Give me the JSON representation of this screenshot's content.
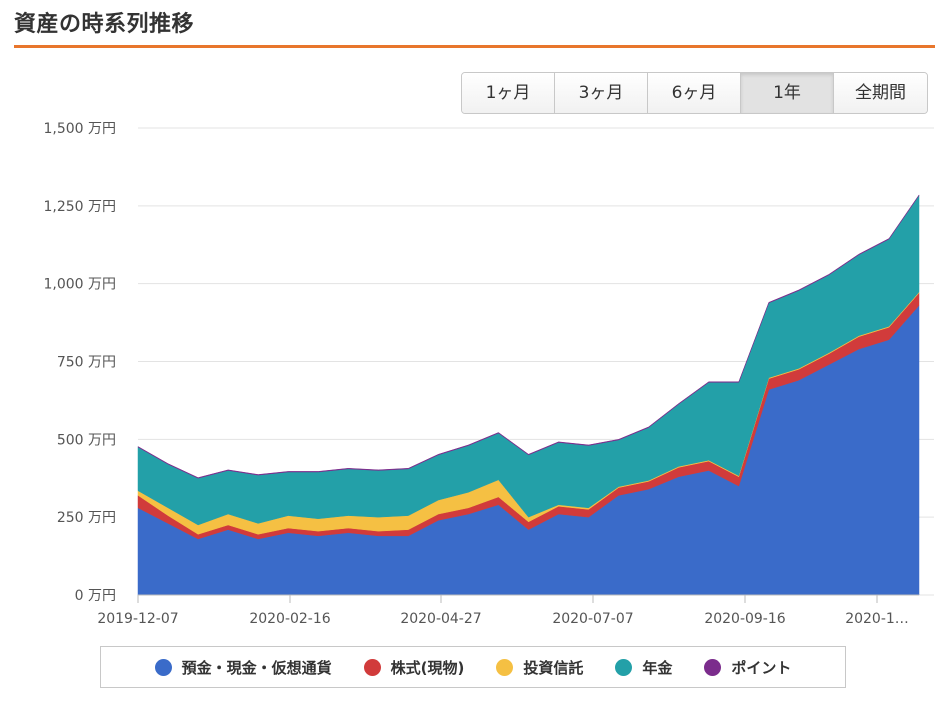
{
  "header": {
    "title": "資産の時系列推移"
  },
  "range_tabs": [
    {
      "label": "1ヶ月",
      "active": false
    },
    {
      "label": "3ヶ月",
      "active": false
    },
    {
      "label": "6ヶ月",
      "active": false
    },
    {
      "label": "1年",
      "active": true
    },
    {
      "label": "全期間",
      "active": false
    }
  ],
  "chart_data": {
    "type": "area",
    "stacked": true,
    "title": "",
    "xlabel": "",
    "ylabel": "",
    "y_unit": "万円",
    "ylim": [
      0,
      1500
    ],
    "y_ticks": [
      0,
      250,
      500,
      750,
      1000,
      1250,
      1500
    ],
    "y_tick_labels": [
      "0 万円",
      "250 万円",
      "500 万円",
      "750 万円",
      "1,000 万円",
      "1,250 万円",
      "1,500 万円"
    ],
    "x_ticks": [
      "2019-12-07",
      "2020-02-16",
      "2020-04-27",
      "2020-07-07",
      "2020-09-16",
      "2020-1…"
    ],
    "grid": true,
    "legend_position": "bottom",
    "x": [
      "2019-12-07",
      "2019-12-21",
      "2020-01-04",
      "2020-01-18",
      "2020-02-01",
      "2020-02-15",
      "2020-02-29",
      "2020-03-14",
      "2020-03-28",
      "2020-04-11",
      "2020-04-25",
      "2020-05-09",
      "2020-05-23",
      "2020-06-06",
      "2020-06-20",
      "2020-07-04",
      "2020-07-18",
      "2020-08-01",
      "2020-08-15",
      "2020-08-29",
      "2020-09-12",
      "2020-09-26",
      "2020-10-10",
      "2020-10-24",
      "2020-11-07",
      "2020-11-21",
      "2020-12-05"
    ],
    "series": [
      {
        "name": "預金・現金・仮想通貨",
        "color": "#3a6bc9",
        "values": [
          280,
          230,
          180,
          210,
          180,
          200,
          190,
          200,
          190,
          190,
          240,
          260,
          290,
          210,
          260,
          250,
          320,
          340,
          380,
          400,
          350,
          660,
          690,
          740,
          790,
          820,
          930
        ]
      },
      {
        "name": "株式(現物)",
        "color": "#d13b3b",
        "values": [
          40,
          25,
          15,
          15,
          15,
          15,
          15,
          15,
          15,
          20,
          20,
          20,
          25,
          25,
          25,
          25,
          25,
          25,
          30,
          30,
          30,
          35,
          35,
          35,
          40,
          40,
          40
        ]
      },
      {
        "name": "投資信託",
        "color": "#f5c043",
        "values": [
          15,
          25,
          30,
          35,
          35,
          40,
          40,
          40,
          45,
          45,
          45,
          50,
          55,
          15,
          5,
          5,
          3,
          3,
          3,
          3,
          3,
          3,
          3,
          3,
          3,
          3,
          3
        ]
      },
      {
        "name": "年金",
        "color": "#23a0a8",
        "values": [
          140,
          140,
          150,
          140,
          155,
          140,
          150,
          150,
          150,
          150,
          145,
          150,
          150,
          200,
          200,
          200,
          150,
          170,
          200,
          250,
          300,
          240,
          250,
          250,
          260,
          280,
          310
        ]
      },
      {
        "name": "ポイント",
        "color": "#7b2c8c",
        "values": [
          2,
          2,
          2,
          2,
          2,
          2,
          2,
          2,
          2,
          2,
          2,
          2,
          2,
          2,
          2,
          2,
          2,
          2,
          2,
          2,
          2,
          2,
          2,
          2,
          2,
          2,
          2
        ]
      }
    ]
  }
}
